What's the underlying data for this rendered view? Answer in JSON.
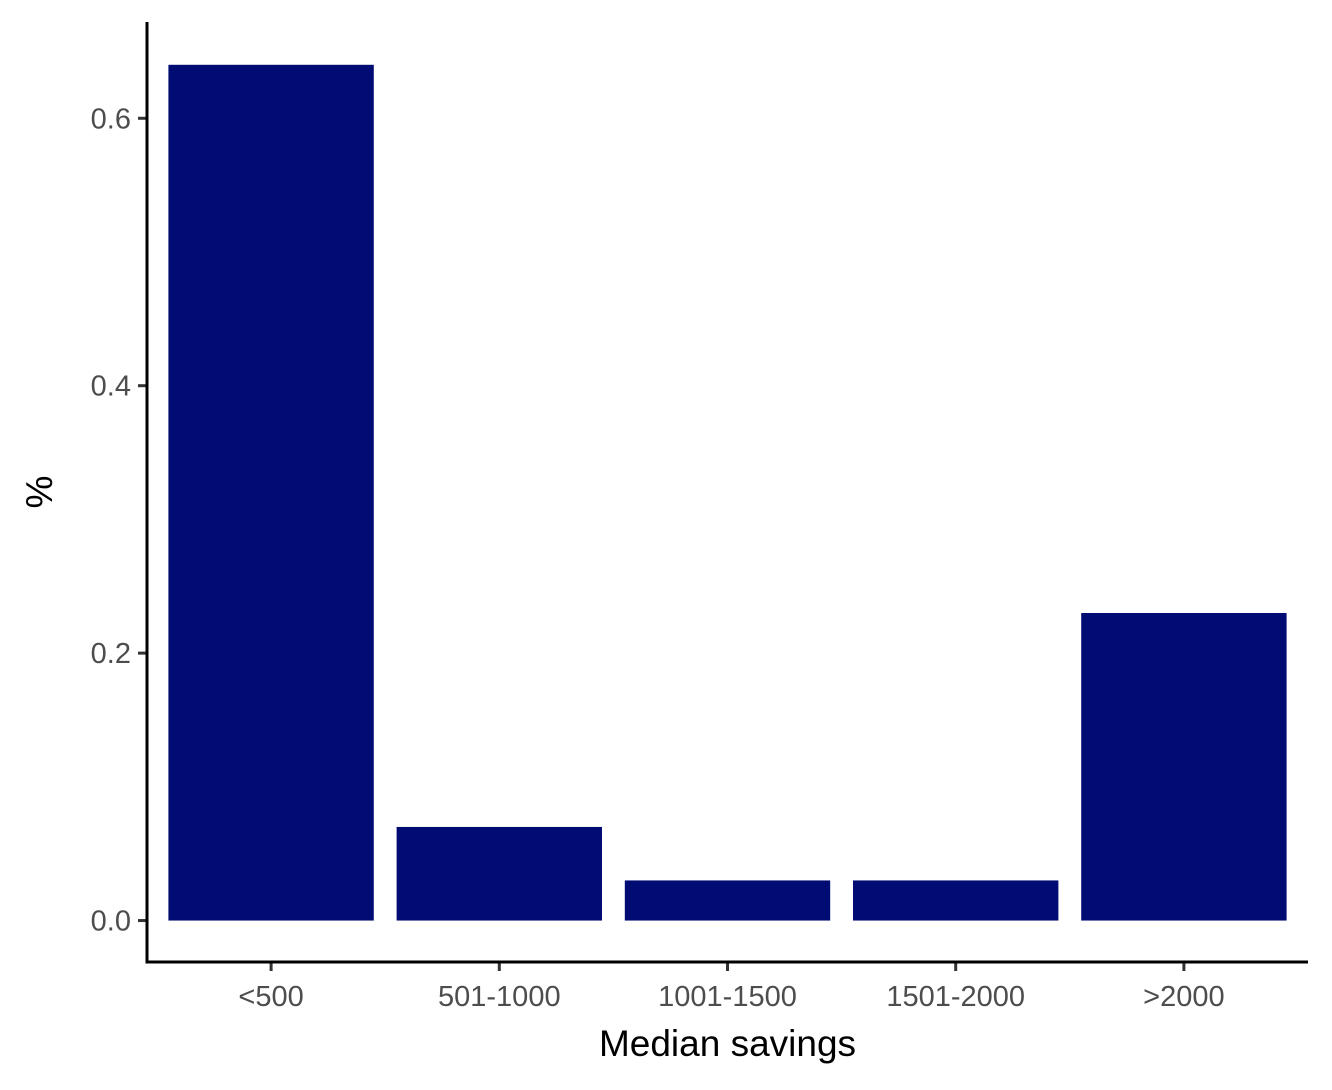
{
  "chart_data": {
    "type": "bar",
    "categories": [
      "<500",
      "501-1000",
      "1001-1500",
      "1501-2000",
      ">2000"
    ],
    "values": [
      0.64,
      0.07,
      0.03,
      0.03,
      0.23
    ],
    "title": "",
    "xlabel": "Median savings",
    "ylabel": "%",
    "ylim": [
      -0.031,
      0.672
    ],
    "yticks": [
      0.0,
      0.2,
      0.4,
      0.6
    ],
    "ytick_labels": [
      "0.0",
      "0.2",
      "0.4",
      "0.6"
    ],
    "grid": false,
    "legend": "none",
    "bar_color": "#000C73"
  }
}
